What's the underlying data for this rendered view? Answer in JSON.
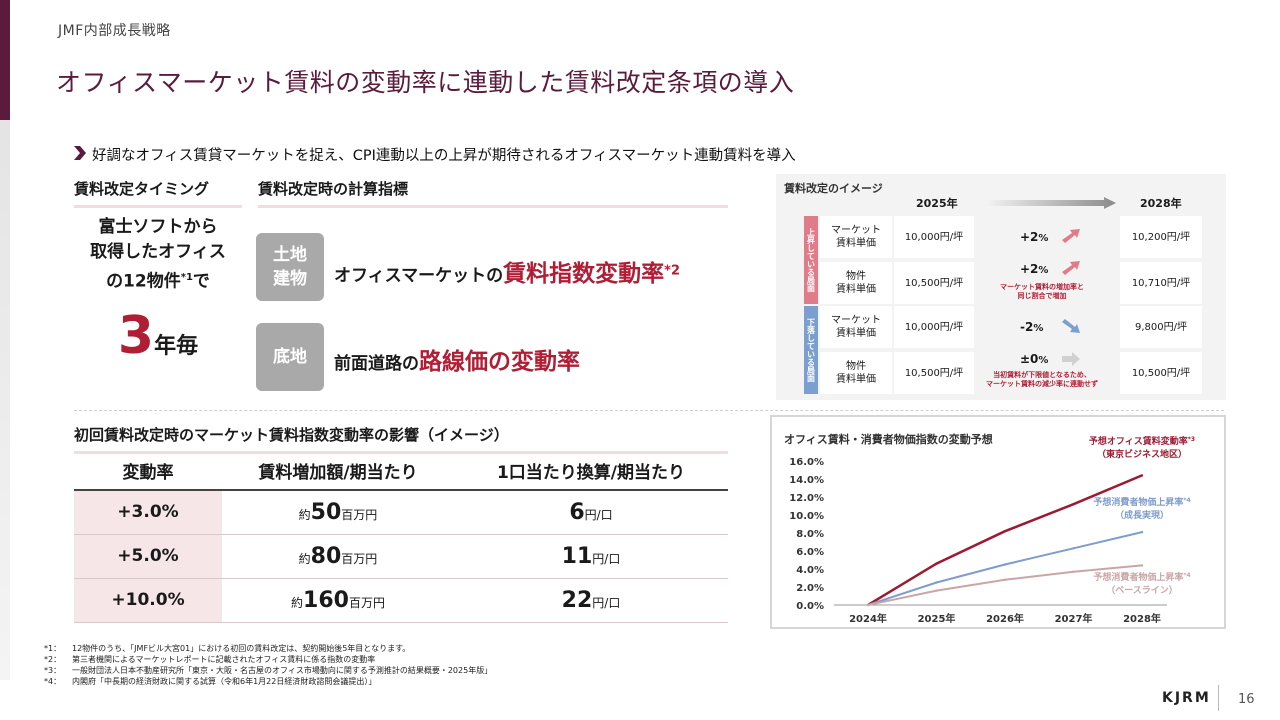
{
  "section_label": "JMF内部成長戦略",
  "title": "オフィスマーケット賃料の変動率に連動した賃料改定条項の導入",
  "lead": "好調なオフィス賃貸マーケットを捉え、CPI連動以上の上昇が期待されるオフィスマーケット連動賃料を導入",
  "timing": {
    "header": "賃料改定タイミング",
    "target_line1": "富士ソフトから",
    "target_line2": "取得したオフィス",
    "target_line3a": "の12物件",
    "target_sup": "*1",
    "target_line3b": "で",
    "interval_num": "3",
    "interval_unit": "年毎"
  },
  "indicator": {
    "header": "賃料改定時の計算指標",
    "tag1_line1": "土地",
    "tag1_line2": "建物",
    "idx1_prefix": "オフィスマーケットの",
    "idx1_red": "賃料指数変動率",
    "idx1_sup": "*2",
    "tag2": "底地",
    "idx2_prefix": "前面道路の",
    "idx2_red": "路線価の変動率"
  },
  "impact": {
    "header": "初回賃料改定時のマーケット賃料指数変動率の影響（イメージ）",
    "columns": [
      "変動率",
      "賃料増加額/期当たり",
      "1口当たり換算/期当たり"
    ],
    "rows": [
      {
        "rate": "+3.0%",
        "pre": "約",
        "amt": "50",
        "amt_unit": "百万円",
        "unit_val": "6",
        "unit_unit": "円/口"
      },
      {
        "rate": "+5.0%",
        "pre": "約",
        "amt": "80",
        "amt_unit": "百万円",
        "unit_val": "11",
        "unit_unit": "円/口"
      },
      {
        "rate": "+10.0%",
        "pre": "約",
        "amt": "160",
        "amt_unit": "百万円",
        "unit_val": "22",
        "unit_unit": "円/口"
      }
    ]
  },
  "image": {
    "title": "賃料改定のイメージ",
    "year_from": "2025年",
    "year_to": "2028年",
    "side_up": "上昇している局面",
    "side_down": "下落している局面",
    "rows": [
      {
        "label1": "マーケット",
        "label2": "賃料単価",
        "v2025": "10,000円/坪",
        "change": "+2",
        "pct": "%",
        "note1": "",
        "note2": "",
        "v2028": "10,200円/坪"
      },
      {
        "label1": "物件",
        "label2": "賃料単価",
        "v2025": "10,500円/坪",
        "change": "+2",
        "pct": "%",
        "note1": "マーケット賃料の増加率と",
        "note2": "同じ割合で増加",
        "v2028": "10,710円/坪"
      },
      {
        "label1": "マーケット",
        "label2": "賃料単価",
        "v2025": "10,000円/坪",
        "change": "-2",
        "pct": "%",
        "note1": "",
        "note2": "",
        "v2028": "9,800円/坪"
      },
      {
        "label1": "物件",
        "label2": "賃料単価",
        "v2025": "10,500円/坪",
        "change": "±0",
        "pct": "%",
        "note1": "当初賃料が下限値となるため、",
        "note2": "マーケット賃料の減少率に連動せず",
        "v2028": "10,500円/坪"
      }
    ],
    "colors": {
      "up": "#e07b89",
      "down": "#7b9fcf",
      "flat": "#d0d0d0"
    }
  },
  "chart_data": {
    "type": "line",
    "title": "オフィス賃料・消費者物価指数の変動予想",
    "categories": [
      "2024年",
      "2025年",
      "2026年",
      "2027年",
      "2028年"
    ],
    "yticks": [
      "0.0%",
      "2.0%",
      "4.0%",
      "6.0%",
      "8.0%",
      "10.0%",
      "12.0%",
      "14.0%",
      "16.0%"
    ],
    "ylim": [
      0,
      16
    ],
    "series": [
      {
        "name": "予想オフィス賃料変動率",
        "sup": "*3",
        "sub": "（東京ビジネス地区）",
        "color": "#9b1b33",
        "values": [
          0,
          4.6,
          8.2,
          11.2,
          14.4
        ]
      },
      {
        "name": "予想消費者物価上昇率",
        "sup": "*4",
        "sub": "（成長実現）",
        "color": "#7f9ccc",
        "values": [
          0,
          2.5,
          4.5,
          6.3,
          8.1
        ]
      },
      {
        "name": "予想消費者物価上昇率",
        "sup": "*4",
        "sub": "（ベースライン）",
        "color": "#c9a6a6",
        "values": [
          0,
          1.6,
          2.8,
          3.7,
          4.4
        ]
      }
    ]
  },
  "footnotes": [
    {
      "k": "*1：",
      "t": "12物件のうち、「JMFビル大宮01」における初回の賃料改定は、契約開始後5年目となります。"
    },
    {
      "k": "*2：",
      "t": "第三者機関によるマーケットレポートに記載されたオフィス賃料に係る指数の変動率"
    },
    {
      "k": "*3：",
      "t": "一般財団法人日本不動産研究所「東京・大阪・名古屋のオフィス市場動向に関する予測推計の結果概要・2025年版」"
    },
    {
      "k": "*4：",
      "t": "内閣府「中長期の経済財政に関する試算（令和6年1月22日経済財政諮問会議提出）」"
    }
  ],
  "logo": "KJRM",
  "page_number": "16",
  "accent": "#5a1b3c",
  "red": "#b01e36"
}
